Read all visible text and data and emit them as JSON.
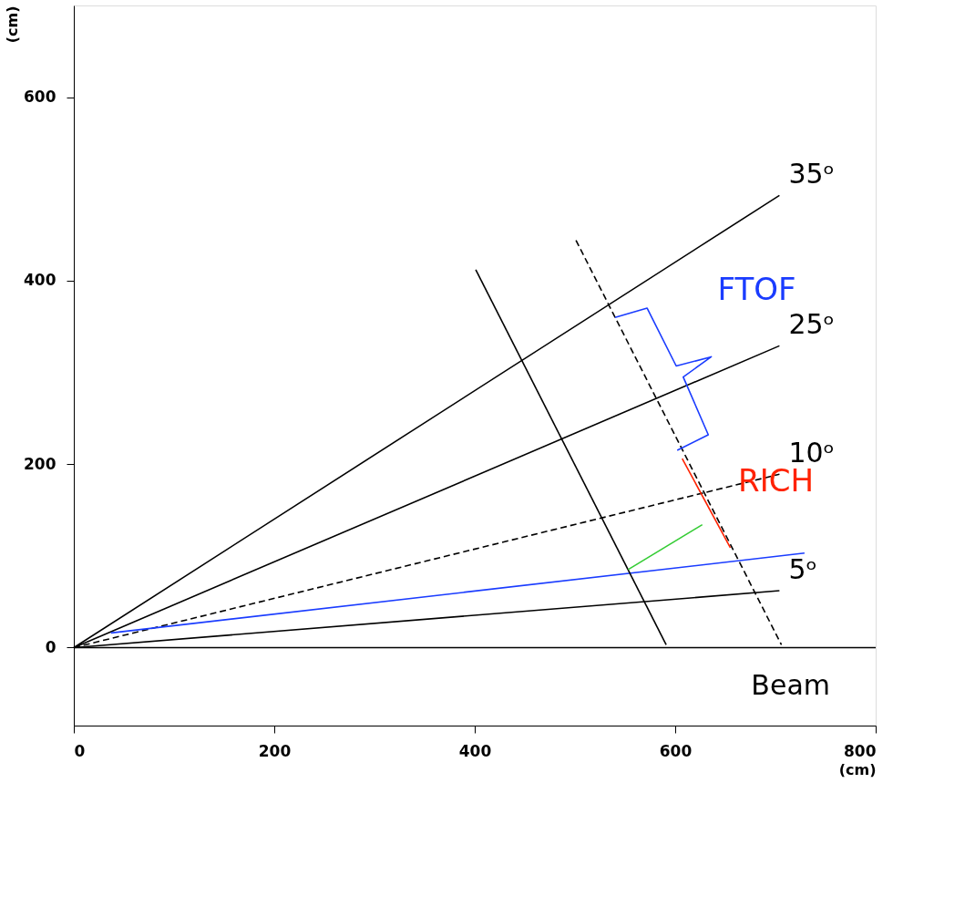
{
  "chart_data": {
    "type": "line",
    "xlabel": "(cm)",
    "ylabel": "(cm)",
    "xlim": [
      0,
      800
    ],
    "ylim": [
      -85,
      700
    ],
    "xticks": [
      0,
      200,
      400,
      600,
      800
    ],
    "yticks": [
      0,
      200,
      400,
      600
    ],
    "grid": false,
    "marker": "none",
    "series": [
      {
        "name": "35ᵒ",
        "color": "#000000",
        "line_style": "solid",
        "x": [
          0,
          704
        ],
        "values": [
          0,
          493
        ]
      },
      {
        "name": "25ᵒ",
        "color": "#000000",
        "line_style": "solid",
        "x": [
          0,
          704
        ],
        "values": [
          0,
          329
        ]
      },
      {
        "name": "10ᵒ",
        "color": "#000000",
        "line_style": "dashed",
        "x": [
          0,
          704
        ],
        "values": [
          0,
          189
        ]
      },
      {
        "name": "5ᵒ",
        "color": "#000000",
        "line_style": "solid",
        "x": [
          0,
          704
        ],
        "values": [
          0,
          62
        ]
      },
      {
        "color": "#1a3cff",
        "line_style": "solid",
        "x": [
          37,
          729
        ],
        "values": [
          16,
          103
        ]
      },
      {
        "color": "#000000",
        "line_style": "solid",
        "x": [
          401,
          591
        ],
        "values": [
          412,
          3
        ]
      },
      {
        "color": "#000000",
        "line_style": "dashed",
        "x": [
          501,
          706
        ],
        "values": [
          444,
          3
        ]
      },
      {
        "color": "#ff2200",
        "line_style": "solid",
        "x": [
          607,
          655
        ],
        "values": [
          206,
          109
        ]
      },
      {
        "color": "#33cc33",
        "line_style": "solid",
        "x": [
          553,
          627
        ],
        "values": [
          85,
          134
        ]
      },
      {
        "color": "#1a3cff",
        "line_style": "solid",
        "x": [
          540,
          572,
          601,
          636,
          608,
          633,
          602
        ],
        "values": [
          360,
          370,
          307,
          317,
          295,
          232,
          215
        ]
      }
    ],
    "ref_lines": [
      {
        "axis": "y",
        "value": 0,
        "label": "Beam",
        "color": "#000000"
      }
    ],
    "annotations": [
      {
        "text": "FTOF",
        "x": 636,
        "y": 317
      },
      {
        "text": "RICH",
        "x": 655,
        "y": 109
      }
    ]
  }
}
